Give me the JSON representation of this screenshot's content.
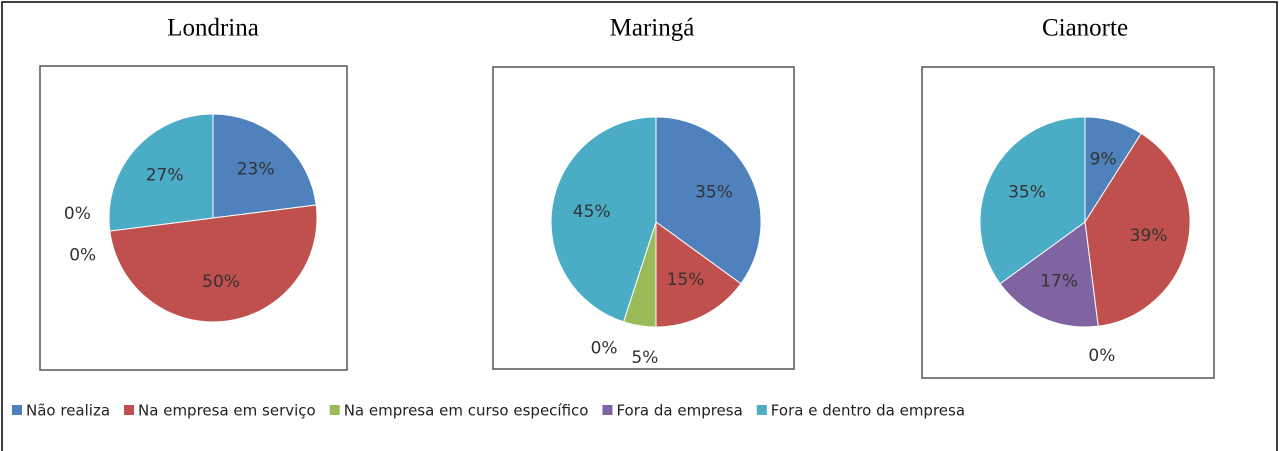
{
  "chart_data": [
    {
      "type": "pie",
      "title": "Londrina",
      "categories": [
        "Não realiza",
        "Na empresa em serviço",
        "Na empresa em curso específico",
        "Fora da empresa",
        "Fora e dentro da empresa"
      ],
      "colors": [
        "#4f81bd",
        "#c0504d",
        "#9bbb59",
        "#8064a2",
        "#4bacc6"
      ],
      "values": [
        23,
        50,
        0,
        0,
        27
      ],
      "value_labels": [
        "23%",
        "50%",
        "0%",
        "0%",
        "27%"
      ]
    },
    {
      "type": "pie",
      "title": "Maringá",
      "categories": [
        "Não realiza",
        "Na empresa em serviço",
        "Na empresa em curso específico",
        "Fora da empresa",
        "Fora e dentro da empresa"
      ],
      "colors": [
        "#4f81bd",
        "#c0504d",
        "#9bbb59",
        "#8064a2",
        "#4bacc6"
      ],
      "values": [
        35,
        15,
        5,
        0,
        45
      ],
      "value_labels": [
        "35%",
        "15%",
        "5%",
        "0%",
        "45%"
      ]
    },
    {
      "type": "pie",
      "title": "Cianorte",
      "categories": [
        "Não realiza",
        "Na empresa em serviço",
        "Na empresa em curso específico",
        "Fora da empresa",
        "Fora e dentro da empresa"
      ],
      "colors": [
        "#4f81bd",
        "#c0504d",
        "#9bbb59",
        "#8064a2",
        "#4bacc6"
      ],
      "values": [
        9,
        39,
        0,
        17,
        35
      ],
      "value_labels": [
        "9%",
        "39%",
        "0%",
        "17%",
        "35%"
      ]
    }
  ]
}
